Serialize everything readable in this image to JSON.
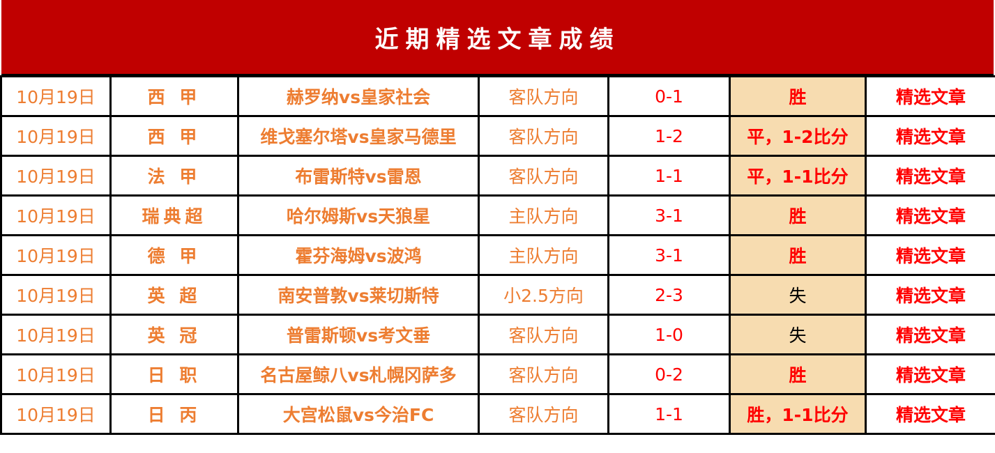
{
  "title": "近期精选文章成绩",
  "colors": {
    "header_bg": "#c00000",
    "orange_text": "#ed7d31",
    "red_text": "#ff0000",
    "result_bg": "#f7dcb0",
    "loss_text": "#000000"
  },
  "rows": [
    {
      "date": "10月19日",
      "league": "西 甲",
      "match": "赫罗纳vs皇家社会",
      "pick": "客队方向",
      "score": "0-1",
      "result": "胜",
      "result_type": "win",
      "link": "精选文章"
    },
    {
      "date": "10月19日",
      "league": "西 甲",
      "match": "维戈塞尔塔vs皇家马德里",
      "pick": "客队方向",
      "score": "1-2",
      "result": "平，1-2比分",
      "result_type": "win",
      "link": "精选文章"
    },
    {
      "date": "10月19日",
      "league": "法 甲",
      "match": "布雷斯特vs雷恩",
      "pick": "客队方向",
      "score": "1-1",
      "result": "平，1-1比分",
      "result_type": "win",
      "link": "精选文章"
    },
    {
      "date": "10月19日",
      "league": "瑞典超",
      "match": "哈尔姆斯vs天狼星",
      "pick": "主队方向",
      "score": "3-1",
      "result": "胜",
      "result_type": "win",
      "link": "精选文章"
    },
    {
      "date": "10月19日",
      "league": "德 甲",
      "match": "霍芬海姆vs波鸿",
      "pick": "主队方向",
      "score": "3-1",
      "result": "胜",
      "result_type": "win",
      "link": "精选文章"
    },
    {
      "date": "10月19日",
      "league": "英 超",
      "match": "南安普敦vs莱切斯特",
      "pick": "小2.5方向",
      "score": "2-3",
      "result": "失",
      "result_type": "loss",
      "link": "精选文章"
    },
    {
      "date": "10月19日",
      "league": "英 冠",
      "match": "普雷斯顿vs考文垂",
      "pick": "客队方向",
      "score": "1-0",
      "result": "失",
      "result_type": "loss",
      "link": "精选文章"
    },
    {
      "date": "10月19日",
      "league": "日 职",
      "match": "名古屋鲸八vs札幌冈萨多",
      "pick": "客队方向",
      "score": "0-2",
      "result": "胜",
      "result_type": "win",
      "link": "精选文章"
    },
    {
      "date": "10月19日",
      "league": "日 丙",
      "match": "大宫松鼠vs今治FC",
      "pick": "客队方向",
      "score": "1-1",
      "result": "胜，1-1比分",
      "result_type": "win",
      "link": "精选文章"
    }
  ]
}
